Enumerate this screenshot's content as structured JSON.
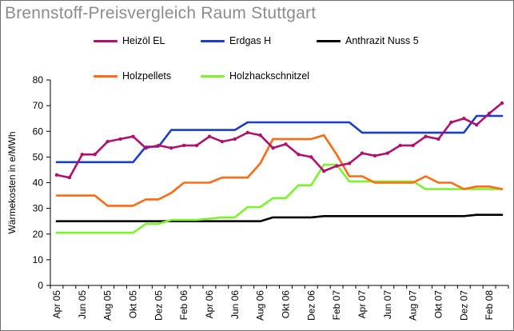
{
  "chart_data": {
    "type": "line",
    "title": "Brennstoff-Preisvergleich Raum Stuttgart",
    "ylabel": "Wärmekosten in e/MWh",
    "xlabel": "",
    "ylim": [
      0,
      80
    ],
    "yticks": [
      0,
      10,
      20,
      30,
      40,
      50,
      60,
      70,
      80
    ],
    "grid": false,
    "legend_position": "top",
    "x_tick_labels": [
      "Apr 05",
      "Jun 05",
      "Aug 05",
      "Okt 05",
      "Dez 05",
      "Feb 06",
      "Apr 06",
      "Jun 06",
      "Aug 06",
      "Okt 06",
      "Dez 06",
      "Feb 07",
      "Apr 07",
      "Jun 07",
      "Aug 07",
      "Okt 07",
      "Dez 07",
      "Feb 08"
    ],
    "months": [
      "Apr 05",
      "Mai 05",
      "Jun 05",
      "Jul 05",
      "Aug 05",
      "Sep 05",
      "Okt 05",
      "Nov 05",
      "Dez 05",
      "Jan 06",
      "Feb 06",
      "Mrz 06",
      "Apr 06",
      "Mai 06",
      "Jun 06",
      "Jul 06",
      "Aug 06",
      "Sep 06",
      "Okt 06",
      "Nov 06",
      "Dez 06",
      "Jan 07",
      "Feb 07",
      "Mrz 07",
      "Apr 07",
      "Mai 07",
      "Jun 07",
      "Jul 07",
      "Aug 07",
      "Sep 07",
      "Okt 07",
      "Nov 07",
      "Dez 07",
      "Jan 08",
      "Feb 08",
      "Mrz 08"
    ],
    "series": [
      {
        "name": "Heizöl EL",
        "color": "#b0106e",
        "marker": "dot",
        "values": [
          43,
          42,
          51,
          51,
          56,
          57,
          58,
          53.5,
          54.5,
          53.5,
          54.5,
          54.5,
          58,
          56,
          57,
          59.5,
          58.5,
          53.5,
          55,
          51,
          50,
          44.5,
          46.5,
          47.5,
          51.5,
          50.5,
          51.5,
          54.5,
          54.5,
          58,
          57,
          63.5,
          65,
          62.5,
          67,
          71
        ]
      },
      {
        "name": "Erdgas H",
        "color": "#1a3fc6",
        "marker": "none",
        "values": [
          48,
          48,
          48,
          48,
          48,
          48,
          48,
          54,
          54,
          60.5,
          60.5,
          60.5,
          60.5,
          60.5,
          60.5,
          63.5,
          63.5,
          63.5,
          63.5,
          63.5,
          63.5,
          63.5,
          63.5,
          63.5,
          59.5,
          59.5,
          59.5,
          59.5,
          59.5,
          59.5,
          59.5,
          59.5,
          59.5,
          66,
          66,
          66
        ]
      },
      {
        "name": "Anthrazit Nuss 5",
        "color": "#000000",
        "marker": "none",
        "values": [
          25,
          25,
          25,
          25,
          25,
          25,
          25,
          25,
          25,
          25,
          25,
          25,
          25,
          25,
          25,
          25,
          25,
          26.5,
          26.5,
          26.5,
          26.5,
          27,
          27,
          27,
          27,
          27,
          27,
          27,
          27,
          27,
          27,
          27,
          27,
          27.5,
          27.5,
          27.5
        ]
      },
      {
        "name": "Holzpellets",
        "color": "#ff6a13",
        "marker": "none",
        "values": [
          35,
          35,
          35,
          35,
          31,
          31,
          31,
          33.5,
          33.5,
          36,
          40,
          40,
          40,
          42,
          42,
          42,
          47.5,
          57,
          57,
          57,
          57,
          58.5,
          51,
          42.5,
          42.5,
          40,
          40,
          40,
          40,
          42.5,
          40,
          40,
          37.5,
          38.5,
          38.5,
          37.5
        ]
      },
      {
        "name": "Holzhackschnitzel",
        "color": "#7cf22e",
        "marker": "none",
        "values": [
          20.5,
          20.5,
          20.5,
          20.5,
          20.5,
          20.5,
          20.5,
          24,
          24,
          25.5,
          25.5,
          25.5,
          26,
          26.5,
          26.5,
          30.5,
          30.5,
          34,
          34,
          39,
          39,
          47,
          47,
          40.5,
          40.5,
          40.5,
          40.5,
          40.5,
          40.5,
          37.5,
          37.5,
          37.5,
          37.5,
          37.5,
          37.5,
          37.5
        ]
      }
    ]
  }
}
